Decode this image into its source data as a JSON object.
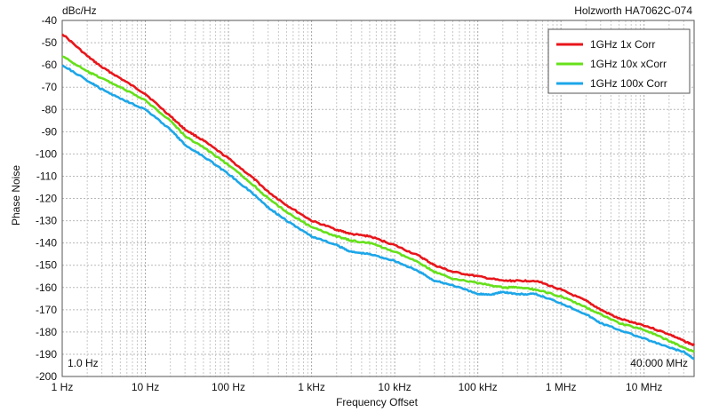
{
  "chart_data": {
    "type": "line",
    "title": "Holzworth HA7062C-074",
    "unit_label": "dBc/Hz",
    "xlabel": "Frequency Offset",
    "ylabel": "Phase Noise",
    "x_scale": "log",
    "xlim": [
      1,
      40000000
    ],
    "ylim": [
      -200,
      -40
    ],
    "y_ticks": [
      -40,
      -50,
      -60,
      -70,
      -80,
      -90,
      -100,
      -110,
      -120,
      -130,
      -140,
      -150,
      -160,
      -170,
      -180,
      -190,
      -200
    ],
    "x_ticks": [
      {
        "value": 1,
        "label": "1 Hz"
      },
      {
        "value": 10,
        "label": "10 Hz"
      },
      {
        "value": 100,
        "label": "100 Hz"
      },
      {
        "value": 1000,
        "label": "1 kHz"
      },
      {
        "value": 10000,
        "label": "10 kHz"
      },
      {
        "value": 100000,
        "label": "100 kHz"
      },
      {
        "value": 1000000,
        "label": "1 MHz"
      },
      {
        "value": 10000000,
        "label": "10 MHz"
      }
    ],
    "grid": true,
    "legend_position": "top-right",
    "start_label": "1.0 Hz",
    "stop_label": "40.000 MHz",
    "series": [
      {
        "name": "1GHz 1x Corr",
        "color": "#e8161b",
        "points": [
          [
            1,
            -46
          ],
          [
            2,
            -56
          ],
          [
            3,
            -61
          ],
          [
            5,
            -66
          ],
          [
            10,
            -73
          ],
          [
            20,
            -83
          ],
          [
            30,
            -89
          ],
          [
            50,
            -94
          ],
          [
            100,
            -102
          ],
          [
            200,
            -111
          ],
          [
            300,
            -117
          ],
          [
            500,
            -123
          ],
          [
            1000,
            -130
          ],
          [
            2000,
            -134
          ],
          [
            3000,
            -136
          ],
          [
            5000,
            -137
          ],
          [
            10000,
            -141
          ],
          [
            20000,
            -146
          ],
          [
            30000,
            -150
          ],
          [
            50000,
            -153
          ],
          [
            100000,
            -155
          ],
          [
            200000,
            -157
          ],
          [
            300000,
            -157
          ],
          [
            500000,
            -157
          ],
          [
            1000000,
            -161
          ],
          [
            2000000,
            -166
          ],
          [
            3000000,
            -170
          ],
          [
            5000000,
            -174
          ],
          [
            10000000,
            -177
          ],
          [
            20000000,
            -181
          ],
          [
            30000000,
            -184
          ],
          [
            40000000,
            -186
          ]
        ]
      },
      {
        "name": "1GHz 10x xCorr",
        "color": "#66e01a",
        "points": [
          [
            1,
            -56
          ],
          [
            2,
            -63
          ],
          [
            3,
            -66
          ],
          [
            5,
            -70
          ],
          [
            10,
            -76
          ],
          [
            20,
            -85
          ],
          [
            30,
            -92
          ],
          [
            50,
            -97
          ],
          [
            100,
            -105
          ],
          [
            200,
            -114
          ],
          [
            300,
            -120
          ],
          [
            500,
            -126
          ],
          [
            1000,
            -133
          ],
          [
            2000,
            -137
          ],
          [
            3000,
            -139
          ],
          [
            5000,
            -140
          ],
          [
            10000,
            -144
          ],
          [
            20000,
            -149
          ],
          [
            30000,
            -153
          ],
          [
            50000,
            -156
          ],
          [
            100000,
            -158
          ],
          [
            200000,
            -160
          ],
          [
            300000,
            -160
          ],
          [
            500000,
            -161
          ],
          [
            1000000,
            -164
          ],
          [
            2000000,
            -169
          ],
          [
            3000000,
            -172
          ],
          [
            5000000,
            -176
          ],
          [
            10000000,
            -179
          ],
          [
            20000000,
            -184
          ],
          [
            30000000,
            -187
          ],
          [
            40000000,
            -189
          ]
        ]
      },
      {
        "name": "1GHz 100x Corr",
        "color": "#1da6e8",
        "points": [
          [
            1,
            -60
          ],
          [
            2,
            -67
          ],
          [
            3,
            -71
          ],
          [
            5,
            -75
          ],
          [
            10,
            -80
          ],
          [
            20,
            -89
          ],
          [
            30,
            -96
          ],
          [
            50,
            -101
          ],
          [
            100,
            -109
          ],
          [
            200,
            -118
          ],
          [
            300,
            -124
          ],
          [
            500,
            -130
          ],
          [
            1000,
            -137
          ],
          [
            2000,
            -141
          ],
          [
            3000,
            -144
          ],
          [
            5000,
            -145
          ],
          [
            10000,
            -148
          ],
          [
            20000,
            -153
          ],
          [
            30000,
            -157
          ],
          [
            50000,
            -159
          ],
          [
            100000,
            -163
          ],
          [
            150000,
            -163
          ],
          [
            200000,
            -162
          ],
          [
            300000,
            -163
          ],
          [
            500000,
            -163
          ],
          [
            1000000,
            -167
          ],
          [
            2000000,
            -172
          ],
          [
            3000000,
            -176
          ],
          [
            5000000,
            -179
          ],
          [
            10000000,
            -183
          ],
          [
            20000000,
            -187
          ],
          [
            30000000,
            -189
          ],
          [
            40000000,
            -192
          ]
        ]
      }
    ]
  }
}
